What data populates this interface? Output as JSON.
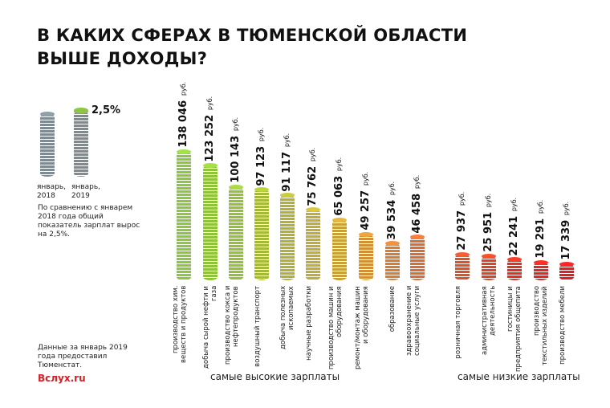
{
  "title_lines": [
    "В КАКИХ СФЕРАХ В ТЮМЕНСКОЙ ОБЛАСТИ",
    "ВЫШЕ ДОХОДЫ?"
  ],
  "summary": {
    "growth": "2,5%",
    "label_2018": "январь, 2018",
    "label_2019": "январь, 2019",
    "text": "По сравнению с январем 2018 года общий показатель зарплат вырос на 2,5%.",
    "gray": "#7f8a91",
    "green": "#8dc63f"
  },
  "source": "Данные за январь 2019 года предоставил Тюменстат.",
  "logo": "Вслух.ru",
  "chart_data": {
    "type": "bar",
    "unit": "руб.",
    "groups": [
      {
        "caption": "самые высокие зарплаты",
        "bars": [
          {
            "label": "производство хим. веществ и продуктов",
            "value": 138046,
            "display": "138 046",
            "color": "#8dc63f"
          },
          {
            "label": "добыча сырой нефти и газа",
            "value": 123252,
            "display": "123 252",
            "color": "#8fc43a"
          },
          {
            "label": "производство кокса и нефтепродуктов",
            "value": 100143,
            "display": "100 143",
            "color": "#95c038"
          },
          {
            "label": "воздушный транспорт",
            "value": 97123,
            "display": "97 123",
            "color": "#a3b937"
          },
          {
            "label": "добыча полезных ископаемых",
            "value": 91117,
            "display": "91 117",
            "color": "#b0b236"
          },
          {
            "label": "научные разработки",
            "value": 75762,
            "display": "75 762",
            "color": "#c0ac38"
          },
          {
            "label": "производство машин и оборудования",
            "value": 65063,
            "display": "65 063",
            "color": "#c9a038"
          },
          {
            "label": "ремонт/монтаж машин и оборудования",
            "value": 49257,
            "display": "49 257",
            "color": "#d18f36"
          },
          {
            "label": "образование",
            "value": 39534,
            "display": "39 534",
            "color": "#d67e36"
          },
          {
            "label": "здравоохранение и социальные услуги",
            "value": 46458,
            "display": "46 458",
            "color": "#d86e35"
          }
        ]
      },
      {
        "caption": "самые низкие зарплаты",
        "bars": [
          {
            "label": "розничная торговля",
            "value": 27937,
            "display": "27 937",
            "color": "#d9522a"
          },
          {
            "label": "административная деятельность",
            "value": 25951,
            "display": "25 951",
            "color": "#d94527"
          },
          {
            "label": "гостиницы и предприятия общепита",
            "value": 22241,
            "display": "22 241",
            "color": "#da3524"
          },
          {
            "label": "производство текстильных изделий",
            "value": 19291,
            "display": "19 291",
            "color": "#dc2a22"
          },
          {
            "label": "производство мебели",
            "value": 17339,
            "display": "17 339",
            "color": "#de2020"
          }
        ]
      }
    ]
  }
}
